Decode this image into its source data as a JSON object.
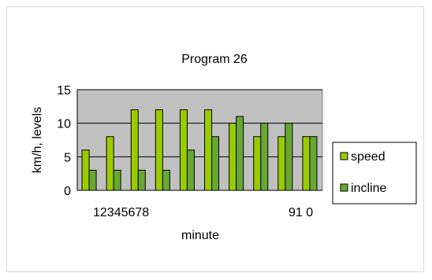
{
  "chart_data": {
    "type": "bar",
    "title": "Program 26",
    "xlabel": "minute",
    "ylabel": "km/h, levels",
    "ylim": [
      0,
      15
    ],
    "yticks": [
      0,
      5,
      10,
      15
    ],
    "categories": [
      "1",
      "2",
      "3",
      "4",
      "5",
      "6",
      "7",
      "8",
      "9",
      "10"
    ],
    "x_tick_labels": [
      "12345678",
      "91 0"
    ],
    "grid": true,
    "legend_position": "right",
    "series": [
      {
        "name": "speed",
        "color": "#99cc00",
        "values": [
          6,
          8,
          12,
          12,
          12,
          12,
          10,
          8,
          8,
          8
        ]
      },
      {
        "name": "incline",
        "color": "#66a832",
        "values": [
          3,
          3,
          3,
          3,
          6,
          8,
          11,
          10,
          10,
          8
        ]
      }
    ]
  }
}
